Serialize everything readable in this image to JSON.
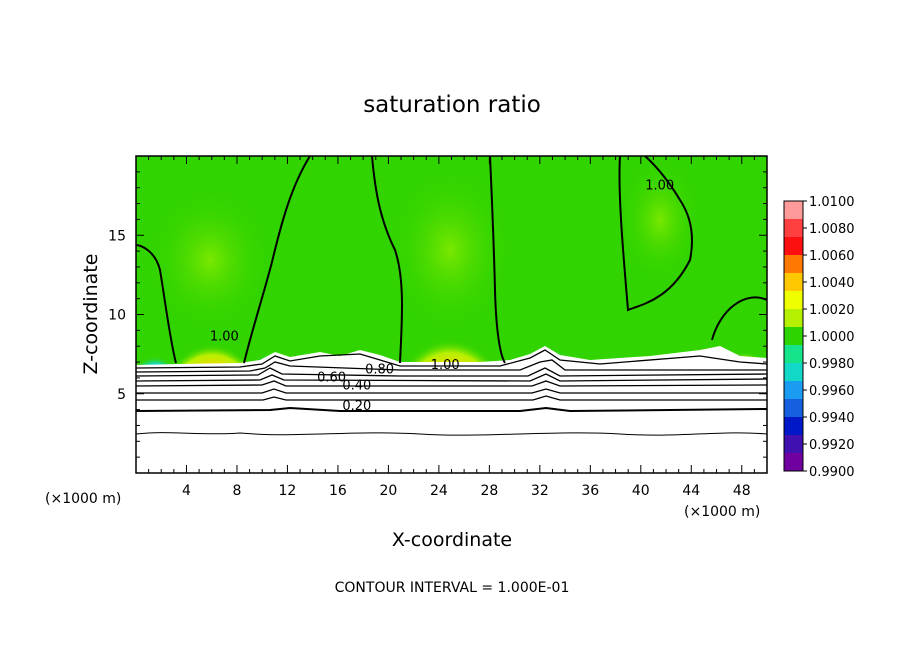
{
  "chart_data": {
    "type": "heatmap",
    "title": "saturation ratio",
    "xlabel": "X-coordinate",
    "ylabel": "Z-coordinate",
    "x_unit_left": "(×1000 m)",
    "x_unit_right": "(×1000 m)",
    "xlim": [
      0,
      50
    ],
    "ylim": [
      0,
      20
    ],
    "x_ticks": [
      4,
      8,
      12,
      16,
      20,
      24,
      28,
      32,
      36,
      40,
      44,
      48
    ],
    "x_tick_labels": [
      "4",
      "8",
      "12",
      "16",
      "20",
      "24",
      "28",
      "32",
      "36",
      "40",
      "44",
      "48"
    ],
    "y_ticks": [
      5,
      10,
      15
    ],
    "y_tick_labels": [
      "5",
      "10",
      "15"
    ],
    "colorbar": {
      "labels": [
        "1.0100",
        "1.0080",
        "1.0060",
        "1.0040",
        "1.0020",
        "1.0000",
        "0.9980",
        "0.9960",
        "0.9940",
        "0.9920",
        "0.9900"
      ],
      "colors": [
        "#ff9a9a",
        "#ff4040",
        "#ff1010",
        "#ff7800",
        "#ffc800",
        "#f0ff00",
        "#b4f000",
        "#2ed400",
        "#16e48a",
        "#12d8c8",
        "#1a9cf0",
        "#1660e0",
        "#0018c8",
        "#4010b0",
        "#7000a0"
      ]
    },
    "contour_labels": [
      {
        "text": "1.00",
        "x": 7.0,
        "z": 8.5
      },
      {
        "text": "1.00",
        "x": 41.5,
        "z": 18.0
      },
      {
        "text": "1.00",
        "x": 24.5,
        "z": 6.7
      },
      {
        "text": "0.80",
        "x": 19.3,
        "z": 6.4
      },
      {
        "text": "0.60",
        "x": 15.5,
        "z": 5.9
      },
      {
        "text": "0.40",
        "x": 17.5,
        "z": 5.4
      },
      {
        "text": "0.20",
        "x": 17.5,
        "z": 4.1
      }
    ],
    "contour_interval_text": "CONTOUR INTERVAL = 1.000E-01"
  }
}
